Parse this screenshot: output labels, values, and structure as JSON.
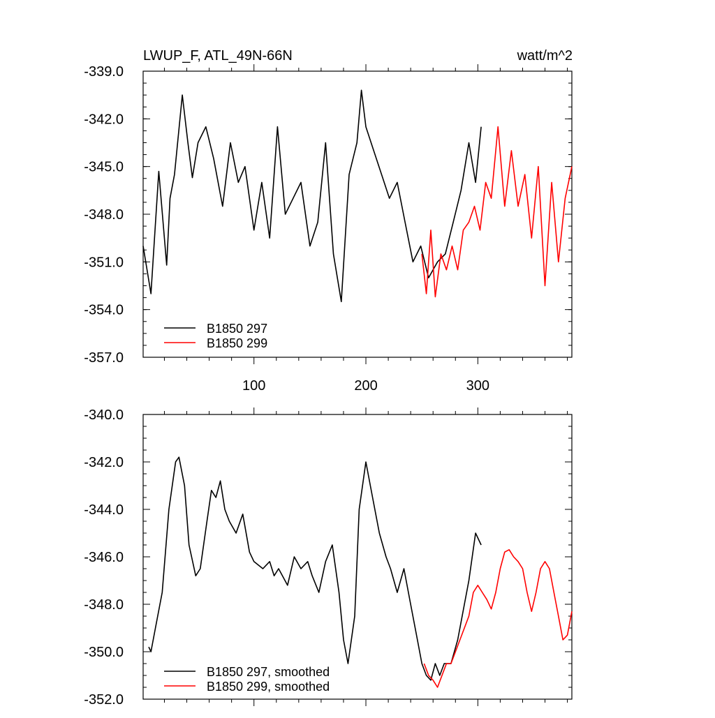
{
  "chart_data": [
    {
      "type": "line",
      "title_left": "LWUP_F, ATL_49N-66N",
      "title_right": "watt/m^2",
      "xlabel": "",
      "ylabel": "",
      "xlim": [
        1,
        384
      ],
      "ylim": [
        -357.0,
        -339.0
      ],
      "yticks": [
        -339.0,
        -342.0,
        -345.0,
        -348.0,
        -351.0,
        -354.0,
        -357.0
      ],
      "ytick_labels": [
        "-339.0",
        "-342.0",
        "-345.0",
        "-348.0",
        "-351.0",
        "-354.0",
        "-357.0"
      ],
      "xticks": [
        100,
        200,
        300
      ],
      "xtick_labels": [
        "100",
        "200",
        "300"
      ],
      "legend_position": "bottom-left",
      "series": [
        {
          "name": "B1850 297",
          "color": "#000000",
          "x": [
            1,
            8,
            15,
            22,
            25,
            29,
            36,
            41,
            45,
            50,
            57,
            64,
            72,
            79,
            86,
            92,
            100,
            107,
            114,
            121,
            128,
            135,
            142,
            150,
            157,
            164,
            171,
            178,
            185,
            192,
            196,
            200,
            207,
            214,
            221,
            228,
            235,
            242,
            249,
            256,
            264,
            271,
            278,
            285,
            292,
            298,
            303
          ],
          "values": [
            -350.0,
            -353.0,
            -345.3,
            -351.2,
            -347.0,
            -345.5,
            -340.5,
            -343.5,
            -345.7,
            -343.5,
            -342.5,
            -344.5,
            -347.5,
            -343.5,
            -346.0,
            -345.0,
            -349.0,
            -346.0,
            -349.5,
            -342.5,
            -348.0,
            -347.0,
            -346.0,
            -350.0,
            -348.5,
            -343.5,
            -350.5,
            -353.5,
            -345.5,
            -343.5,
            -340.2,
            -342.5,
            -344.0,
            -345.5,
            -347.0,
            -346.0,
            -348.5,
            -351.0,
            -350.0,
            -352.0,
            -351.0,
            -350.5,
            -348.5,
            -346.5,
            -343.5,
            -346.0,
            -342.5
          ]
        },
        {
          "name": "B1850 299",
          "color": "#ff0000",
          "x": [
            250,
            254,
            258,
            262,
            267,
            272,
            277,
            282,
            287,
            292,
            297,
            302,
            307,
            312,
            318,
            324,
            330,
            336,
            342,
            348,
            354,
            360,
            366,
            372,
            378,
            384
          ],
          "values": [
            -350.5,
            -353.0,
            -349.0,
            -353.2,
            -350.5,
            -351.5,
            -350.0,
            -351.5,
            -349.0,
            -348.5,
            -347.5,
            -349.0,
            -346.0,
            -347.0,
            -342.5,
            -347.5,
            -344.0,
            -347.5,
            -345.5,
            -349.5,
            -345.0,
            -352.5,
            -346.0,
            -351.0,
            -347.0,
            -345.0
          ]
        }
      ]
    },
    {
      "type": "line",
      "title": "",
      "xlabel": "",
      "ylabel": "",
      "xlim": [
        1,
        384
      ],
      "ylim": [
        -352.0,
        -340.0
      ],
      "yticks": [
        -340.0,
        -342.0,
        -344.0,
        -346.0,
        -348.0,
        -350.0,
        -352.0
      ],
      "ytick_labels": [
        "-340.0",
        "-342.0",
        "-344.0",
        "-346.0",
        "-348.0",
        "-350.0",
        "-352.0"
      ],
      "xticks": [
        100,
        200,
        300
      ],
      "legend_position": "bottom-left",
      "series": [
        {
          "name": "B1850 297, smoothed",
          "color": "#000000",
          "x": [
            6,
            8,
            12,
            18,
            24,
            30,
            33,
            38,
            42,
            48,
            52,
            58,
            62,
            66,
            70,
            74,
            78,
            84,
            90,
            96,
            100,
            108,
            114,
            118,
            122,
            130,
            136,
            142,
            148,
            152,
            158,
            164,
            170,
            176,
            180,
            184,
            190,
            194,
            200,
            206,
            212,
            218,
            222,
            228,
            234,
            240,
            246,
            250,
            254,
            258,
            262,
            266,
            270,
            276,
            282,
            288,
            292,
            298,
            303
          ],
          "values": [
            -349.8,
            -350.0,
            -349.0,
            -347.5,
            -344.0,
            -342.0,
            -341.8,
            -343.0,
            -345.5,
            -346.8,
            -346.5,
            -344.5,
            -343.2,
            -343.5,
            -342.8,
            -344.0,
            -344.5,
            -345.0,
            -344.2,
            -345.8,
            -346.2,
            -346.5,
            -346.2,
            -346.8,
            -346.5,
            -347.2,
            -346.0,
            -346.5,
            -346.2,
            -346.8,
            -347.5,
            -346.2,
            -345.5,
            -347.5,
            -349.5,
            -350.5,
            -348.5,
            -344.0,
            -342.0,
            -343.5,
            -345.0,
            -346.0,
            -346.5,
            -347.5,
            -346.5,
            -348.0,
            -349.5,
            -350.5,
            -351.0,
            -351.2,
            -350.5,
            -351.0,
            -350.5,
            -350.5,
            -349.5,
            -348.0,
            -347.0,
            -345.0,
            -345.5
          ]
        },
        {
          "name": "B1850 299, smoothed",
          "color": "#ff0000",
          "x": [
            252,
            256,
            260,
            264,
            268,
            272,
            276,
            280,
            284,
            288,
            292,
            296,
            300,
            304,
            308,
            312,
            316,
            320,
            324,
            328,
            332,
            336,
            340,
            344,
            348,
            352,
            356,
            360,
            364,
            368,
            372,
            376,
            380,
            384
          ],
          "values": [
            -350.5,
            -351.0,
            -351.2,
            -351.5,
            -351.0,
            -350.5,
            -350.5,
            -350.0,
            -349.5,
            -349.0,
            -348.5,
            -347.5,
            -347.2,
            -347.5,
            -347.8,
            -348.2,
            -347.5,
            -346.5,
            -345.8,
            -345.7,
            -346.0,
            -346.2,
            -346.5,
            -347.5,
            -348.3,
            -347.5,
            -346.5,
            -346.2,
            -346.5,
            -347.5,
            -348.5,
            -349.5,
            -349.3,
            -348.3
          ]
        }
      ]
    }
  ]
}
